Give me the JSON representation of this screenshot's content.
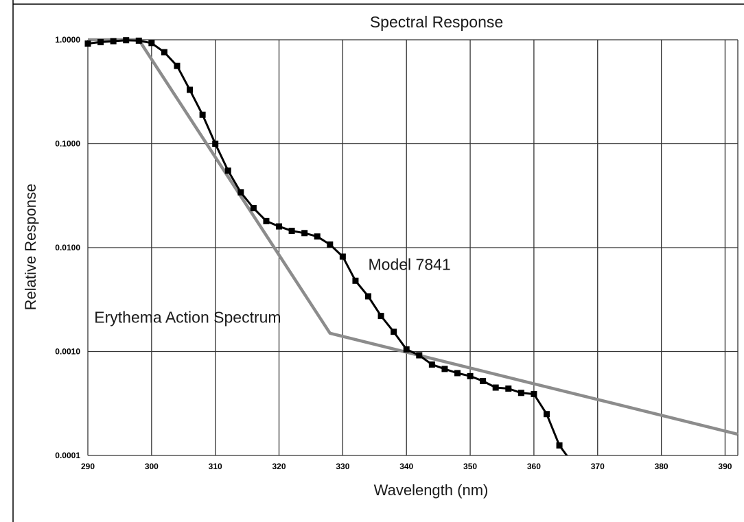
{
  "chart_data": {
    "type": "line",
    "title": "Spectral Response",
    "xlabel": "Wavelength (nm)",
    "ylabel": "Relative Response",
    "x_scale": "linear",
    "y_scale": "log",
    "xlim": [
      290,
      392
    ],
    "ylim": [
      0.0001,
      1.0
    ],
    "x_ticks": [
      290,
      300,
      310,
      320,
      330,
      340,
      350,
      360,
      370,
      380,
      390
    ],
    "x_tick_labels": [
      "290",
      "300",
      "310",
      "320",
      "330",
      "340",
      "350",
      "360",
      "370",
      "380",
      "390"
    ],
    "y_ticks": [
      1.0,
      0.1,
      0.01,
      0.001,
      0.0001
    ],
    "y_tick_labels": [
      "1.0000",
      "0.1000",
      "0.0100",
      "0.0010",
      "0.0001"
    ],
    "grid": true,
    "legend": "none",
    "series": [
      {
        "name": "Model 7841",
        "color": "#000000",
        "marker": "square",
        "x": [
          290,
          292,
          294,
          296,
          298,
          300,
          302,
          304,
          306,
          308,
          310,
          312,
          314,
          316,
          318,
          320,
          322,
          324,
          326,
          328,
          330,
          332,
          334,
          336,
          338,
          340,
          342,
          344,
          346,
          348,
          350,
          352,
          354,
          356,
          358,
          360,
          362,
          364,
          366
        ],
        "y": [
          0.92,
          0.95,
          0.97,
          0.99,
          0.98,
          0.93,
          0.76,
          0.56,
          0.33,
          0.19,
          0.1,
          0.055,
          0.034,
          0.024,
          0.018,
          0.016,
          0.0145,
          0.0138,
          0.0128,
          0.0107,
          0.0082,
          0.0048,
          0.0034,
          0.0022,
          0.00155,
          0.00105,
          0.00092,
          0.00075,
          0.00068,
          0.00062,
          0.00058,
          0.00052,
          0.00045,
          0.00044,
          0.0004,
          0.00039,
          0.00025,
          0.000125,
          8.5e-05
        ]
      },
      {
        "name": "Erythema Action Spectrum",
        "color": "#8c8c8c",
        "marker": "none",
        "x": [
          290,
          298,
          328,
          392
        ],
        "y": [
          1.0,
          1.0,
          0.0015,
          0.00016
        ]
      }
    ],
    "annotations": [
      {
        "text": "Model 7841",
        "x": 334,
        "y": 0.0061
      },
      {
        "text": "Erythema Action Spectrum",
        "x": 291,
        "y": 0.0019
      }
    ]
  }
}
